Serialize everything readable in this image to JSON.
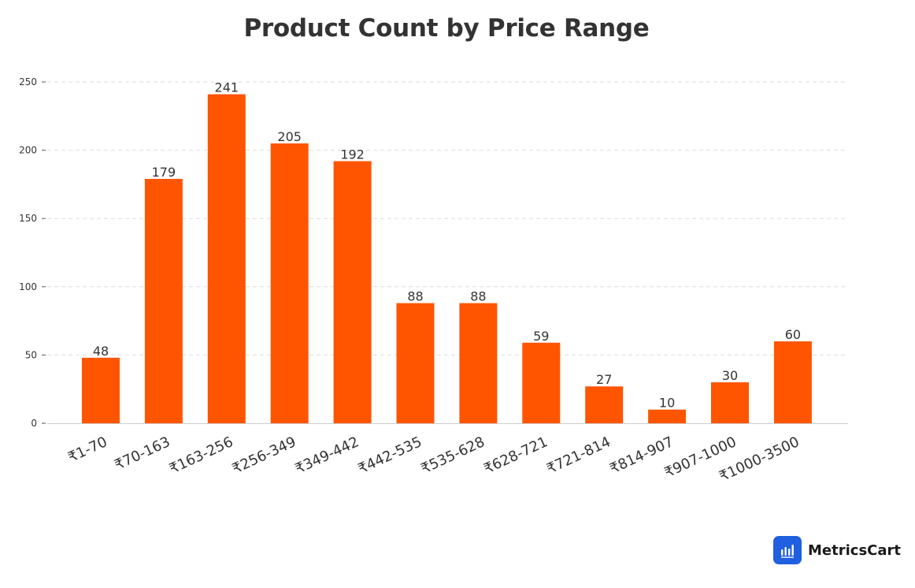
{
  "chart_data": {
    "type": "bar",
    "title": "Product Count by Price Range",
    "xlabel": "",
    "ylabel": "",
    "categories": [
      "₹1-70",
      "₹70-163",
      "₹163-256",
      "₹256-349",
      "₹349-442",
      "₹442-535",
      "₹535-628",
      "₹628-721",
      "₹721-814",
      "₹814-907",
      "₹907-1000",
      "₹1000-3500"
    ],
    "values": [
      48,
      179,
      241,
      205,
      192,
      88,
      88,
      59,
      27,
      10,
      30,
      60
    ],
    "ylim": [
      0,
      250
    ],
    "yticks": [
      0,
      50,
      100,
      150,
      200,
      250
    ],
    "grid": true,
    "bar_color": "#ff5500",
    "data_labels": true
  },
  "brand": {
    "name": "MetricsCart",
    "icon": "bar-chart-logo-icon",
    "color": "#1f5fe0"
  }
}
